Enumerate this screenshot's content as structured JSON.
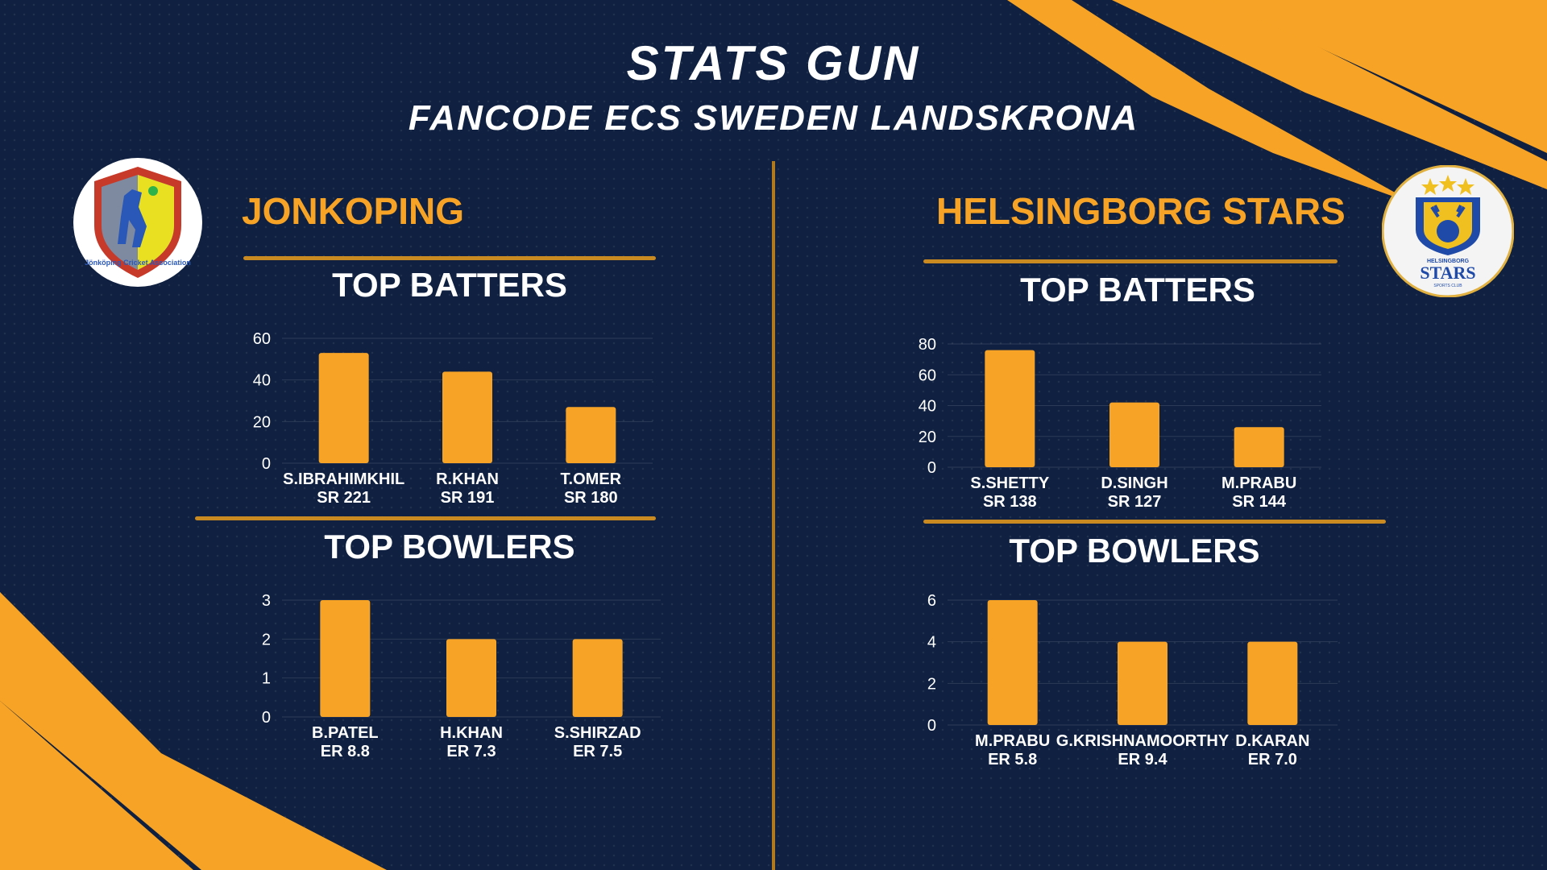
{
  "header": {
    "title": "STATS GUN",
    "subtitle": "FANCODE ECS SWEDEN LANDSKRONA"
  },
  "colors": {
    "background": "#0f2040",
    "accent": "#f7a325",
    "divider": "#b07a1c"
  },
  "teams": {
    "left": {
      "name": "JONKOPING",
      "logo_text": "Jönköping Cricket Association",
      "batters_title": "TOP BATTERS",
      "bowlers_title": "TOP BOWLERS"
    },
    "right": {
      "name": "HELSINGBORG STARS",
      "logo_text_top": "HELSINGBORG",
      "logo_text_main": "STARS",
      "logo_text_bottom": "SPORTS CLUB",
      "batters_title": "TOP BATTERS",
      "bowlers_title": "TOP BOWLERS"
    }
  },
  "chart_data": [
    {
      "type": "bar",
      "id": "left-batters",
      "categories": [
        "S.IBRAHIMKHIL",
        "R.KHAN",
        "T.OMER"
      ],
      "sublabels": [
        "SR 221",
        "SR 191",
        "SR 180"
      ],
      "values": [
        53,
        44,
        27
      ],
      "yticks": [
        0,
        20,
        40,
        60
      ],
      "ylim": [
        0,
        60
      ]
    },
    {
      "type": "bar",
      "id": "left-bowlers",
      "categories": [
        "B.PATEL",
        "H.KHAN",
        "S.SHIRZAD"
      ],
      "sublabels": [
        "ER 8.8",
        "ER 7.3",
        "ER 7.5"
      ],
      "values": [
        3,
        2,
        2
      ],
      "yticks": [
        0,
        1,
        2,
        3
      ],
      "ylim": [
        0,
        3
      ]
    },
    {
      "type": "bar",
      "id": "right-batters",
      "categories": [
        "S.SHETTY",
        "D.SINGH",
        "M.PRABU"
      ],
      "sublabels": [
        "SR 138",
        "SR 127",
        "SR 144"
      ],
      "values": [
        76,
        42,
        26
      ],
      "yticks": [
        0,
        20,
        40,
        60,
        80
      ],
      "ylim": [
        0,
        80
      ]
    },
    {
      "type": "bar",
      "id": "right-bowlers",
      "categories": [
        "M.PRABU",
        "G.KRISHNAMOORTHY",
        "D.KARAN"
      ],
      "sublabels": [
        "ER 5.8",
        "ER 9.4",
        "ER 7.0"
      ],
      "values": [
        6,
        4,
        4
      ],
      "yticks": [
        0,
        2,
        4,
        6
      ],
      "ylim": [
        0,
        6
      ]
    }
  ]
}
